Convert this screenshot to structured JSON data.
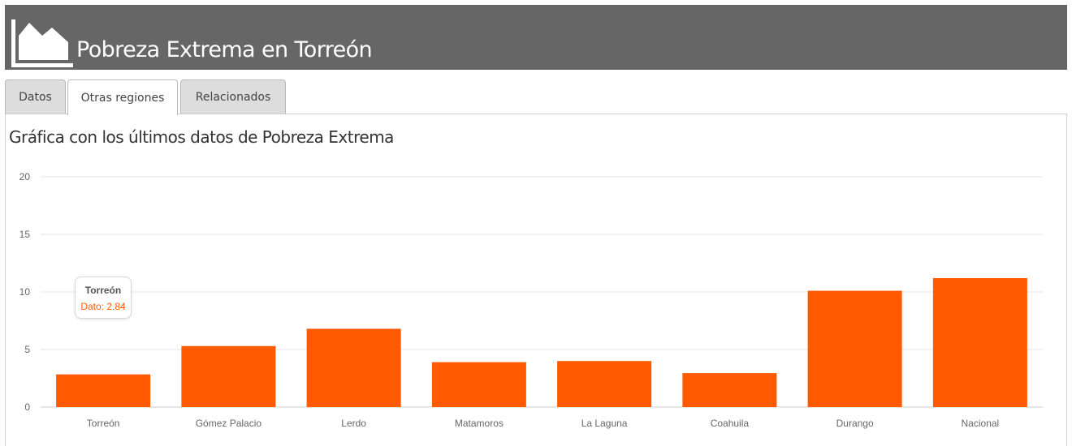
{
  "header": {
    "title": "Pobreza Extrema en Torreón",
    "icon": "area-chart-icon"
  },
  "tabs": [
    {
      "label": "Datos",
      "active": false
    },
    {
      "label": "Otras regiones",
      "active": true
    },
    {
      "label": "Relacionados",
      "active": false
    }
  ],
  "panel": {
    "title": "Gráfica con los últimos datos de Pobreza Extrema"
  },
  "tooltip": {
    "title": "Torreón",
    "value": "Dato: 2.84"
  },
  "colors": {
    "bar": "#ff5a00",
    "header": "#666666",
    "grid": "#e6e6e6"
  },
  "chart_data": {
    "type": "bar",
    "categories": [
      "Torreón",
      "Gómez Palacio",
      "Lerdo",
      "Matamoros",
      "La Laguna",
      "Coahuila",
      "Durango",
      "Nacional"
    ],
    "values": [
      2.84,
      5.3,
      6.8,
      3.9,
      4.0,
      2.95,
      10.1,
      11.2
    ],
    "yticks": [
      0,
      5,
      10,
      15,
      20
    ],
    "ylim": [
      0,
      20
    ],
    "grid": true,
    "legend": "none"
  }
}
